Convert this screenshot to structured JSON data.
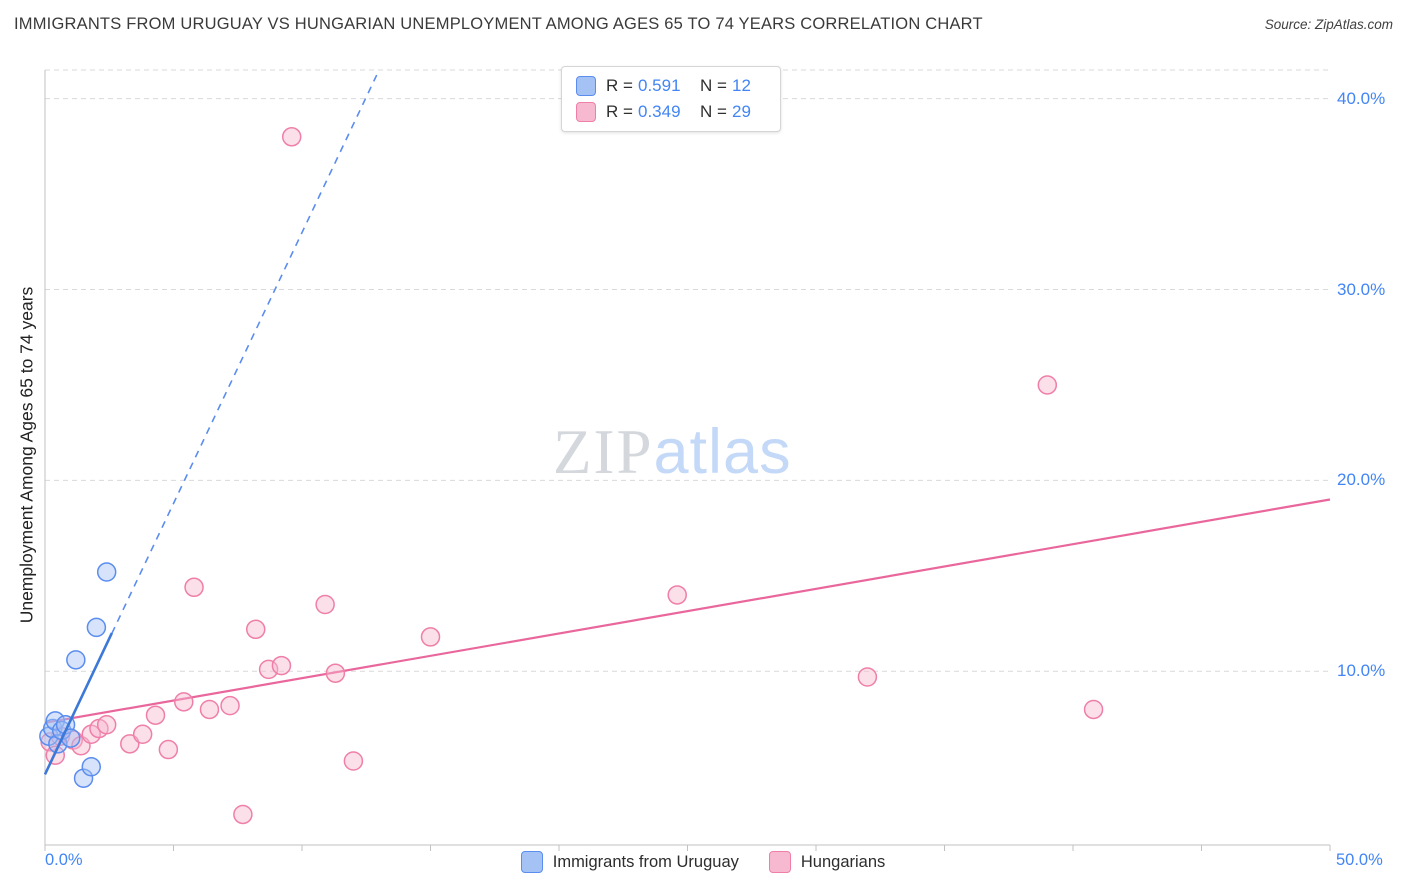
{
  "page": {
    "title": "IMMIGRANTS FROM URUGUAY VS HUNGARIAN UNEMPLOYMENT AMONG AGES 65 TO 74 YEARS CORRELATION CHART",
    "source": "Source: ZipAtlas.com"
  },
  "watermark": {
    "zip": "ZIP",
    "atlas": "atlas"
  },
  "legend_box": {
    "rows": [
      {
        "series": "Immigrants from Uruguay",
        "r_label": "R =",
        "r_value": "0.591",
        "n_label": "N =",
        "n_value": "12"
      },
      {
        "series": "Hungarians",
        "r_label": "R =",
        "r_value": "0.349",
        "n_label": "N =",
        "n_value": "29"
      }
    ]
  },
  "axes": {
    "y_label": "Unemployment Among Ages 65 to 74 years",
    "y_tick_labels": [
      "40.0%",
      "30.0%",
      "20.0%",
      "10.0%"
    ],
    "x_min_label": "0.0%",
    "x_max_label": "50.0%"
  },
  "bottom_legend": [
    {
      "label": "Immigrants from Uruguay"
    },
    {
      "label": "Hungarians"
    }
  ],
  "colors": {
    "accent_blue": "#4285f4",
    "blue_fill": "#a4c2f4",
    "blue_stroke": "#5b8def",
    "blue_trend": "#3c78d8",
    "pink_fill": "#f7b9cf",
    "pink_stroke": "#ef7fa8",
    "pink_trend": "#e9679c",
    "grid_line": "#d9d9d9",
    "axis_line": "#c2c2c2",
    "text_dark": "#3a3a3a",
    "watermark_gray": "#d4d8dd",
    "watermark_blue": "#c4d9f7"
  },
  "chart_data": {
    "type": "scatter",
    "title": "Immigrants from Uruguay vs Hungarian Unemployment Among Ages 65 to 74 years",
    "xlabel": "Immigrants from Uruguay (%)",
    "ylabel": "Unemployment Among Ages 65 to 74 years (%)",
    "xlim": [
      0,
      50
    ],
    "ylim": [
      0.9,
      41.5
    ],
    "x_ticks": [
      0,
      5,
      10,
      15,
      20,
      25,
      30,
      35,
      40,
      45,
      50
    ],
    "y_gridlines": [
      10,
      20,
      30,
      40
    ],
    "legend_position": "bottom-center",
    "grid": "horizontal-dashed",
    "series": [
      {
        "name": "Immigrants from Uruguay",
        "R": 0.591,
        "N": 12,
        "points": [
          [
            0.15,
            6.6
          ],
          [
            0.3,
            7.0
          ],
          [
            0.4,
            7.4
          ],
          [
            0.5,
            6.2
          ],
          [
            0.65,
            6.9
          ],
          [
            0.8,
            7.2
          ],
          [
            1.0,
            6.5
          ],
          [
            1.2,
            10.6
          ],
          [
            1.5,
            4.4
          ],
          [
            1.8,
            5.0
          ],
          [
            2.0,
            12.3
          ],
          [
            2.4,
            15.2
          ]
        ]
      },
      {
        "name": "Hungarians",
        "R": 0.349,
        "N": 29,
        "points": [
          [
            0.2,
            6.3
          ],
          [
            0.4,
            5.6
          ],
          [
            0.6,
            6.6
          ],
          [
            1.1,
            6.4
          ],
          [
            1.4,
            6.1
          ],
          [
            1.8,
            6.7
          ],
          [
            2.1,
            7.0
          ],
          [
            2.4,
            7.2
          ],
          [
            3.3,
            6.2
          ],
          [
            3.8,
            6.7
          ],
          [
            4.3,
            7.7
          ],
          [
            4.8,
            5.9
          ],
          [
            5.4,
            8.4
          ],
          [
            5.8,
            14.4
          ],
          [
            6.4,
            8.0
          ],
          [
            7.2,
            8.2
          ],
          [
            7.7,
            2.5
          ],
          [
            8.2,
            12.2
          ],
          [
            8.7,
            10.1
          ],
          [
            9.2,
            10.3
          ],
          [
            9.6,
            38.0
          ],
          [
            10.9,
            13.5
          ],
          [
            11.3,
            9.9
          ],
          [
            12.0,
            5.3
          ],
          [
            15.0,
            11.8
          ],
          [
            24.6,
            14.0
          ],
          [
            32.0,
            9.7
          ],
          [
            39.0,
            25.0
          ],
          [
            40.8,
            8.0
          ]
        ]
      }
    ],
    "trend_lines": [
      {
        "series": "Immigrants from Uruguay",
        "solid": [
          [
            0,
            4.6
          ],
          [
            2.6,
            12.0
          ]
        ],
        "dashed": [
          [
            0,
            4.6
          ],
          [
            13.0,
            41.5
          ]
        ]
      },
      {
        "series": "Hungarians",
        "solid": [
          [
            0,
            7.3
          ],
          [
            50,
            19.0
          ]
        ]
      }
    ]
  }
}
